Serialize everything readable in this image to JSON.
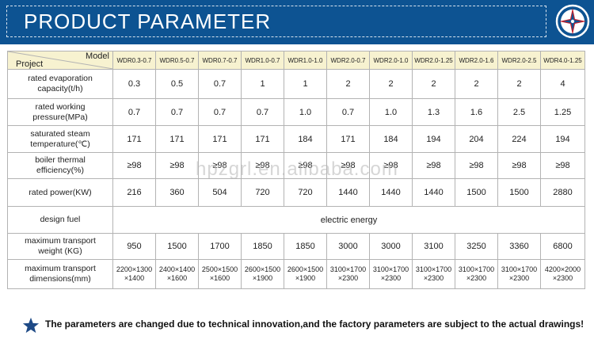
{
  "header": {
    "title": "PRODUCT PARAMETER",
    "logo_icon": "compass-star-logo-icon"
  },
  "table": {
    "corner_model": "Model",
    "corner_project": "Project",
    "models": [
      "WDR0.3-0.7",
      "WDR0.5-0.7",
      "WDR0.7-0.7",
      "WDR1.0-0.7",
      "WDR1.0-1.0",
      "WDR2.0-0.7",
      "WDR2.0-1.0",
      "WDR2.0-1.25",
      "WDR2.0-1.6",
      "WDR2.0-2.5",
      "WDR4.0-1.25"
    ],
    "rows": [
      {
        "label": [
          "rated evaporation",
          "capacity(t/h)"
        ],
        "values": [
          "0.3",
          "0.5",
          "0.7",
          "1",
          "1",
          "2",
          "2",
          "2",
          "2",
          "2",
          "4"
        ]
      },
      {
        "label": [
          "rated working",
          "pressure(MPa)"
        ],
        "values": [
          "0.7",
          "0.7",
          "0.7",
          "0.7",
          "1.0",
          "0.7",
          "1.0",
          "1.3",
          "1.6",
          "2.5",
          "1.25"
        ]
      },
      {
        "label": [
          "saturated steam",
          "temperature(℃)"
        ],
        "values": [
          "171",
          "171",
          "171",
          "171",
          "184",
          "171",
          "184",
          "194",
          "204",
          "224",
          "194"
        ]
      },
      {
        "label": [
          "boiler thermal",
          "efficiency(%)"
        ],
        "values": [
          "≥98",
          "≥98",
          "≥98",
          "≥98",
          "≥98",
          "≥98",
          "≥98",
          "≥98",
          "≥98",
          "≥98",
          "≥98"
        ]
      },
      {
        "label": [
          "rated power(KW)"
        ],
        "values": [
          "216",
          "360",
          "504",
          "720",
          "720",
          "1440",
          "1440",
          "1440",
          "1500",
          "1500",
          "2880"
        ]
      },
      {
        "label": [
          "design fuel"
        ],
        "merged": "electric  energy"
      },
      {
        "label": [
          "maximum transport",
          "weight  (KG)"
        ],
        "values": [
          "950",
          "1500",
          "1700",
          "1850",
          "1850",
          "3000",
          "3000",
          "3100",
          "3250",
          "3360",
          "6800"
        ]
      },
      {
        "label": [
          "maximum transport",
          "dimensions(mm)"
        ],
        "values": [
          [
            "2200×1300",
            "×1400"
          ],
          [
            "2400×1400",
            "×1600"
          ],
          [
            "2500×1500",
            "×1600"
          ],
          [
            "2600×1500",
            "×1900"
          ],
          [
            "2600×1500",
            "×1900"
          ],
          [
            "3100×1700",
            "×2300"
          ],
          [
            "3100×1700",
            "×2300"
          ],
          [
            "3100×1700",
            "×2300"
          ],
          [
            "3100×1700",
            "×2300"
          ],
          [
            "3100×1700",
            "×2300"
          ],
          [
            "4200×2000",
            "×2300"
          ]
        ]
      }
    ]
  },
  "watermark": "hpzgrl.en.alibaba.com",
  "footer": {
    "icon": "star-icon",
    "note": "The parameters are changed due to technical innovation,and the factory parameters are subject to the actual drawings!"
  },
  "colors": {
    "header_bg": "#0d5392",
    "model_row_bg": "#f7f2d0",
    "border": "#b3b3b3",
    "star": "#1e4a86"
  }
}
